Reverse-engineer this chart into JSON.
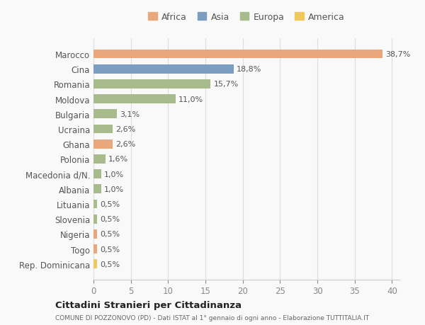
{
  "categories": [
    "Marocco",
    "Cina",
    "Romania",
    "Moldova",
    "Bulgaria",
    "Ucraina",
    "Ghana",
    "Polonia",
    "Macedonia d/N.",
    "Albania",
    "Lituania",
    "Slovenia",
    "Nigeria",
    "Togo",
    "Rep. Dominicana"
  ],
  "values": [
    38.7,
    18.8,
    15.7,
    11.0,
    3.1,
    2.6,
    2.6,
    1.6,
    1.0,
    1.0,
    0.5,
    0.5,
    0.5,
    0.5,
    0.5
  ],
  "labels": [
    "38,7%",
    "18,8%",
    "15,7%",
    "11,0%",
    "3,1%",
    "2,6%",
    "2,6%",
    "1,6%",
    "1,0%",
    "1,0%",
    "0,5%",
    "0,5%",
    "0,5%",
    "0,5%",
    "0,5%"
  ],
  "continents": [
    "Africa",
    "Asia",
    "Europa",
    "Europa",
    "Europa",
    "Europa",
    "Africa",
    "Europa",
    "Europa",
    "Europa",
    "Europa",
    "Europa",
    "Africa",
    "Africa",
    "America"
  ],
  "colors": {
    "Africa": "#E8A87C",
    "Asia": "#7B9DC0",
    "Europa": "#A8BB8C",
    "America": "#F0C860"
  },
  "legend_labels": [
    "Africa",
    "Asia",
    "Europa",
    "America"
  ],
  "legend_colors": [
    "#E8A87C",
    "#7B9DC0",
    "#A8BB8C",
    "#F0C860"
  ],
  "title": "Cittadini Stranieri per Cittadinanza",
  "subtitle": "COMUNE DI POZZONOVO (PD) - Dati ISTAT al 1° gennaio di ogni anno - Elaborazione TUTTITALIA.IT",
  "xlim": [
    0,
    41
  ],
  "xticks": [
    0,
    5,
    10,
    15,
    20,
    25,
    30,
    35,
    40
  ],
  "background_color": "#f9f9f9",
  "grid_color": "#dddddd"
}
